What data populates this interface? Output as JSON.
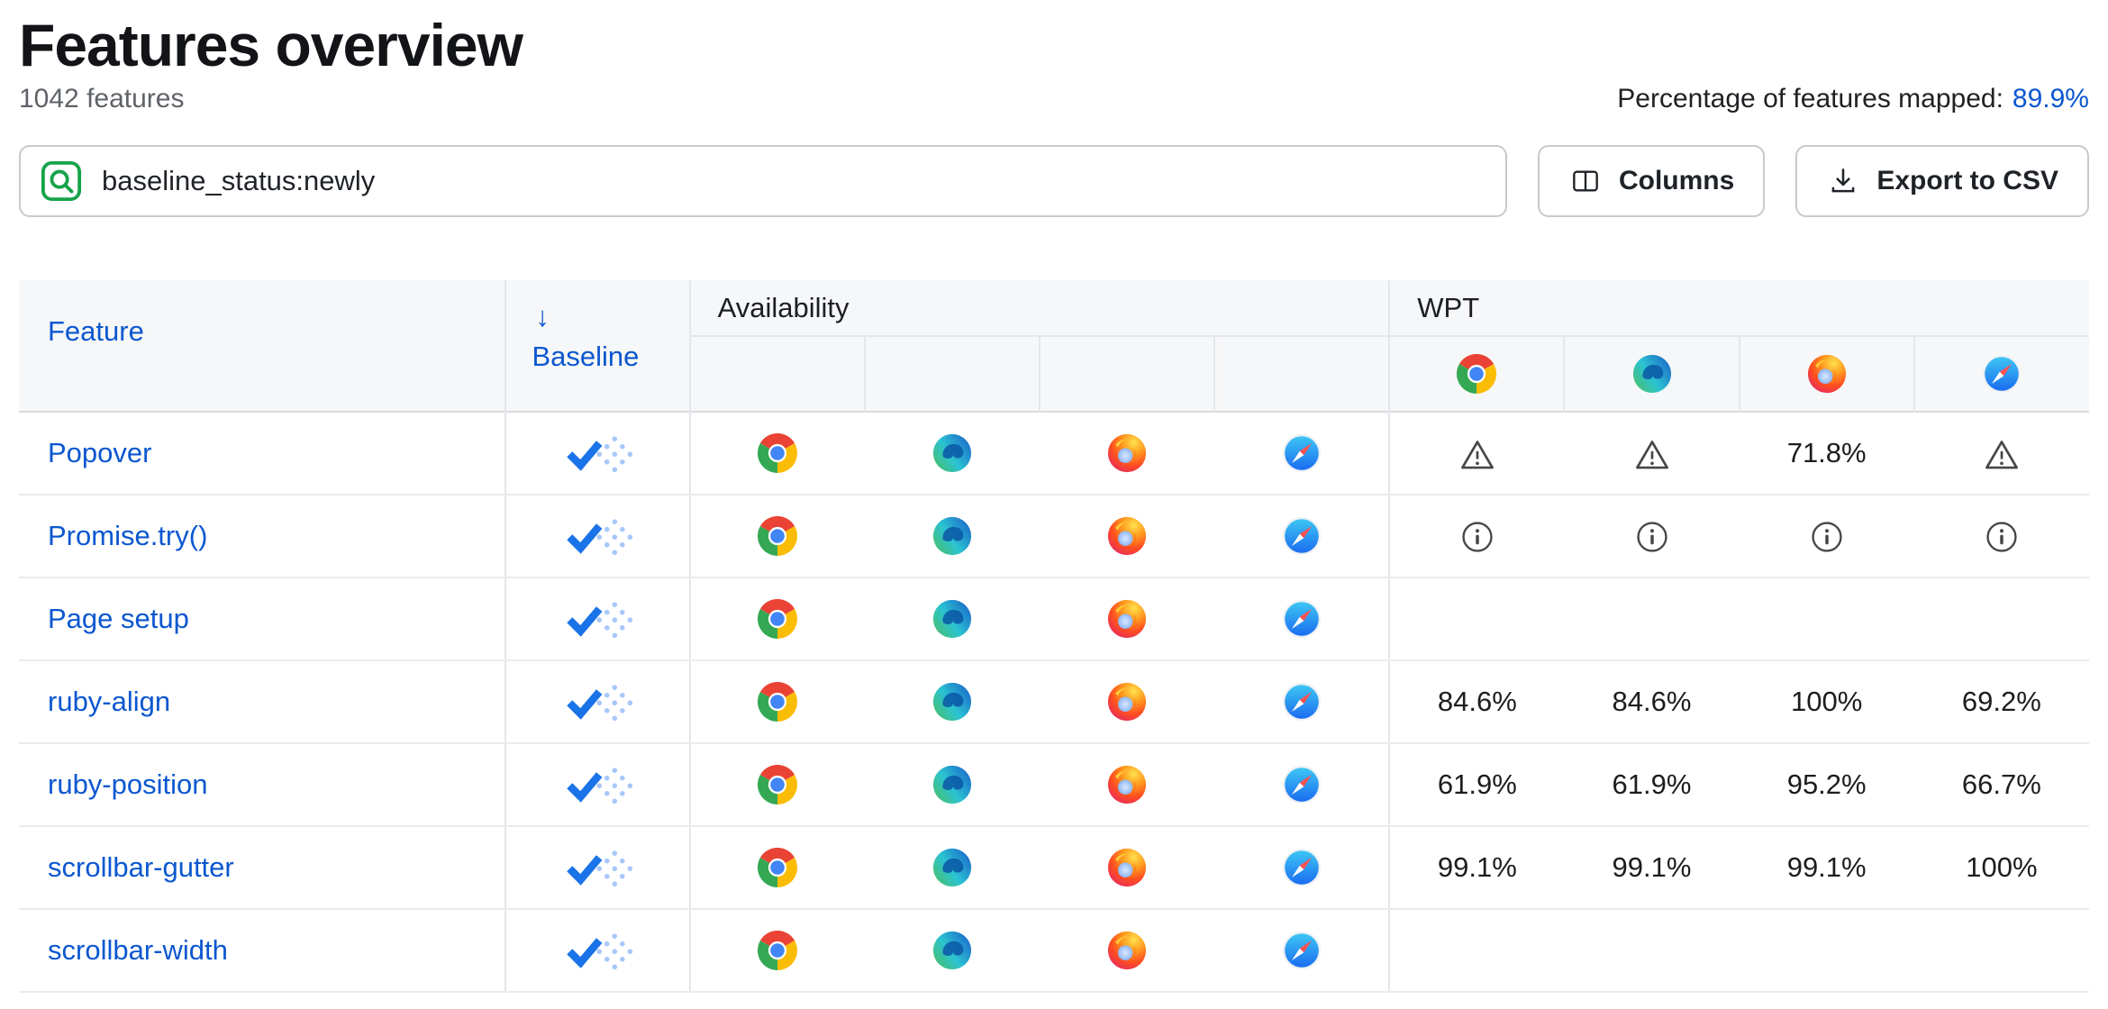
{
  "page": {
    "title": "Features overview",
    "subtitle": "1042 features",
    "mapped_label": "Percentage of features mapped:",
    "mapped_value": "89.9%"
  },
  "toolbar": {
    "search_value": "baseline_status:newly",
    "columns_label": "Columns",
    "export_label": "Export to CSV"
  },
  "table": {
    "columns": {
      "feature": "Feature",
      "baseline": "Baseline",
      "baseline_sort_arrow": "↓",
      "availability_group": "Availability",
      "wpt_group": "WPT",
      "wpt_browsers": [
        "chrome",
        "edge",
        "firefox",
        "safari"
      ]
    },
    "rows": [
      {
        "feature": "Popover",
        "baseline": "newly",
        "availability": [
          "chrome",
          "edge",
          "firefox",
          "safari"
        ],
        "wpt": [
          "warning",
          "warning",
          "71.8%",
          "warning"
        ]
      },
      {
        "feature": "Promise.try()",
        "baseline": "newly",
        "availability": [
          "chrome",
          "edge",
          "firefox",
          "safari"
        ],
        "wpt": [
          "info",
          "info",
          "info",
          "info"
        ]
      },
      {
        "feature": "Page setup",
        "baseline": "newly",
        "availability": [
          "chrome",
          "edge",
          "firefox",
          "safari"
        ],
        "wpt": [
          "",
          "",
          "",
          ""
        ]
      },
      {
        "feature": "ruby-align",
        "baseline": "newly",
        "availability": [
          "chrome",
          "edge",
          "firefox",
          "safari"
        ],
        "wpt": [
          "84.6%",
          "84.6%",
          "100%",
          "69.2%"
        ]
      },
      {
        "feature": "ruby-position",
        "baseline": "newly",
        "availability": [
          "chrome",
          "edge",
          "firefox",
          "safari"
        ],
        "wpt": [
          "61.9%",
          "61.9%",
          "95.2%",
          "66.7%"
        ]
      },
      {
        "feature": "scrollbar-gutter",
        "baseline": "newly",
        "availability": [
          "chrome",
          "edge",
          "firefox",
          "safari"
        ],
        "wpt": [
          "99.1%",
          "99.1%",
          "99.1%",
          "100%"
        ]
      },
      {
        "feature": "scrollbar-width",
        "baseline": "newly",
        "availability": [
          "chrome",
          "edge",
          "firefox",
          "safari"
        ],
        "wpt": [
          "",
          "",
          "",
          ""
        ]
      }
    ]
  },
  "colors": {
    "link": "#0b57d0",
    "search-green": "#17a34a",
    "baseline-blue": "#1a73e8",
    "baseline-dot": "#a8c7fa",
    "header-bg": "#f6f7f8",
    "border": "#e4e6e9",
    "text": "#1f2328",
    "muted": "#5f6368"
  }
}
